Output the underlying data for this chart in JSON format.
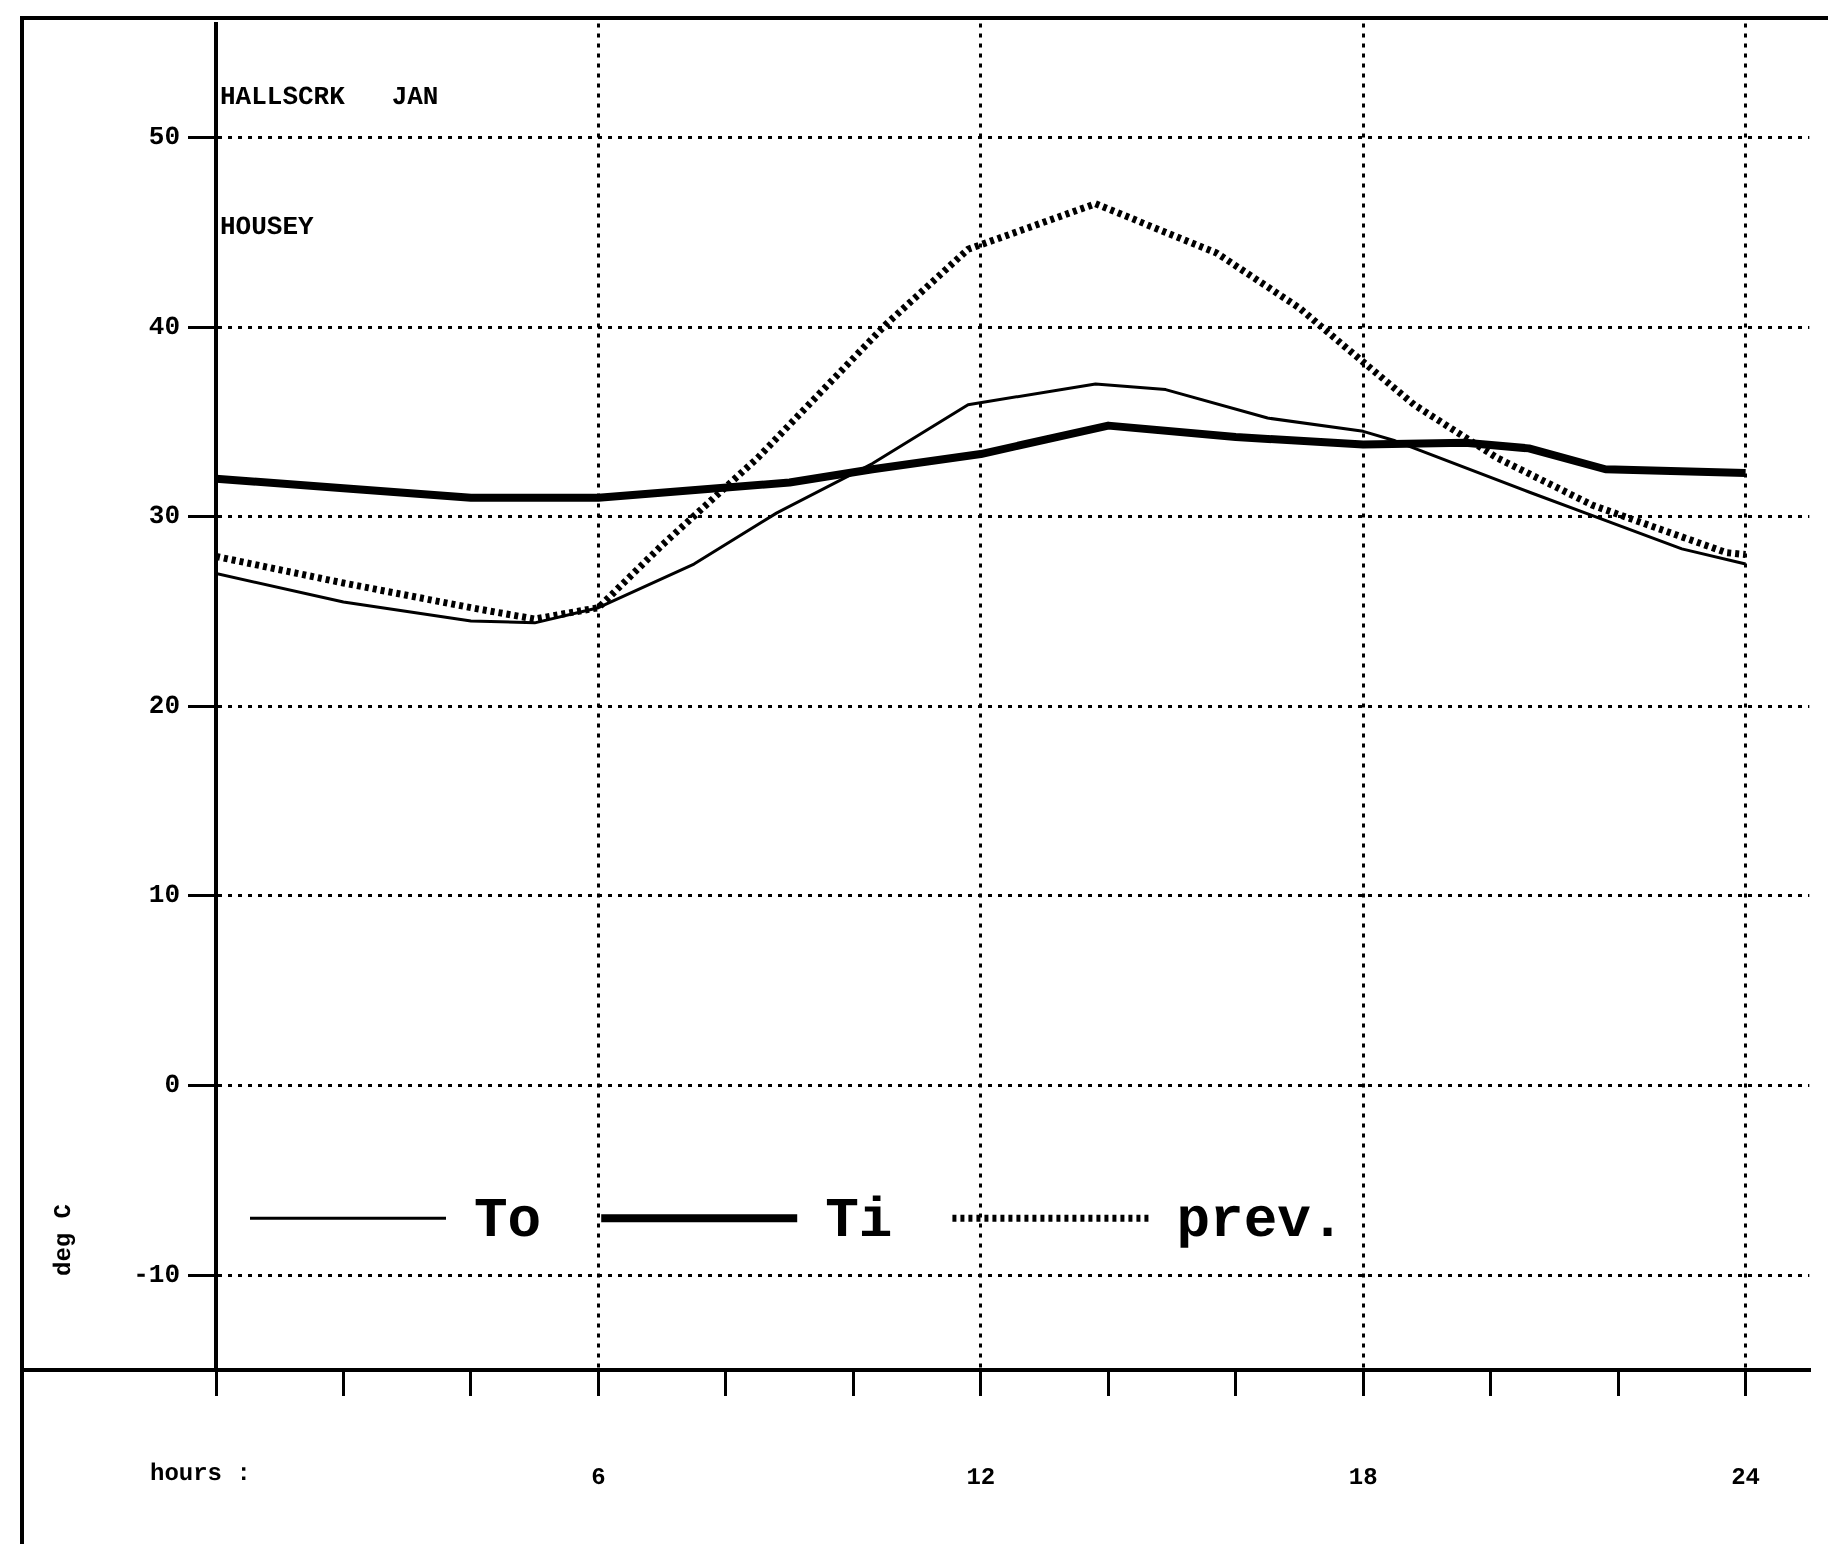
{
  "chart_data": {
    "type": "line",
    "xlabel": "hours :",
    "ylabel": "deg C",
    "annotations": [
      "HALLSCRK   JAN",
      "HOUSEY"
    ],
    "xlim": [
      0,
      25
    ],
    "ylim": [
      -15,
      56
    ],
    "xticks": [
      {
        "value": 0,
        "label": null
      },
      {
        "value": 2,
        "label": null
      },
      {
        "value": 4,
        "label": null
      },
      6,
      {
        "value": 8,
        "label": null
      },
      {
        "value": 10,
        "label": null
      },
      12,
      {
        "value": 14,
        "label": null
      },
      {
        "value": 16,
        "label": null
      },
      18,
      {
        "value": 20,
        "label": null
      },
      {
        "value": 22,
        "label": null
      },
      24
    ],
    "yticks": [
      -10,
      0,
      10,
      20,
      30,
      40,
      50
    ],
    "grid": true,
    "legend": "bottom left",
    "marker": "none",
    "series": [
      {
        "name": "To",
        "color": "#000000",
        "line_style": "solid",
        "x": [
          0,
          2,
          4,
          5,
          6,
          7.5,
          8.8,
          10.3,
          11.8,
          13.8,
          14.9,
          16.5,
          18,
          18.5,
          20.6,
          23,
          24
        ],
        "values": [
          27,
          25.5,
          24.5,
          24.4,
          25.2,
          27.5,
          30.2,
          32.8,
          35.9,
          37,
          36.7,
          35.2,
          34.5,
          34,
          31.3,
          28.3,
          27.5
        ]
      },
      {
        "name": "Ti",
        "color": "#000000",
        "line_style": "solid",
        "x": [
          0,
          2,
          4,
          6,
          9,
          10.3,
          12,
          14,
          16,
          18,
          19.6,
          20.6,
          21.8,
          24
        ],
        "values": [
          32,
          31.5,
          31,
          31,
          31.8,
          32.5,
          33.3,
          34.8,
          34.2,
          33.8,
          33.9,
          33.6,
          32.5,
          32.3
        ]
      },
      {
        "name": "prev.",
        "color": "#000000",
        "line_style": "dotted",
        "x": [
          0,
          2,
          4,
          5,
          6,
          7,
          8.5,
          10.5,
          11.8,
          13.8,
          15.7,
          17,
          17.7,
          18.8,
          20.1,
          21.6,
          23.7,
          24
        ],
        "values": [
          27.9,
          26.5,
          25.2,
          24.6,
          25.2,
          28.5,
          33.1,
          40.1,
          44.1,
          46.5,
          43.9,
          41,
          39,
          35.9,
          33.1,
          30.6,
          28.1,
          28
        ]
      }
    ]
  }
}
